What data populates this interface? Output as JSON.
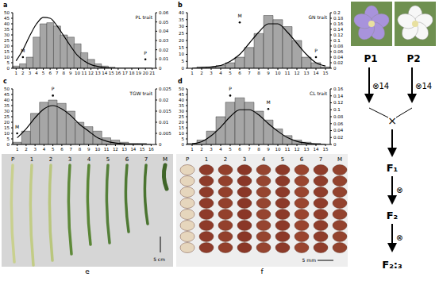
{
  "chart_data": [
    {
      "type": "bar",
      "label": "a",
      "title": "PL trait",
      "categories": [
        "1",
        "2",
        "3",
        "4",
        "5",
        "6",
        "7",
        "8",
        "9",
        "10",
        "11",
        "12",
        "13",
        "14",
        "15",
        "16",
        "17",
        "18",
        "19",
        "20",
        "21"
      ],
      "series": [
        {
          "type": "bar",
          "color": "#a6a6a6",
          "values": [
            2,
            4,
            10,
            28,
            40,
            41,
            38,
            30,
            28,
            22,
            14,
            8,
            4,
            2,
            1,
            0,
            0,
            0,
            0,
            0,
            0
          ]
        },
        {
          "type": "line",
          "color": "#000000",
          "axis": "y2",
          "values": [
            0.008,
            0.02,
            0.035,
            0.048,
            0.055,
            0.054,
            0.046,
            0.035,
            0.024,
            0.014,
            0.008,
            0.004,
            0.002,
            0.001,
            0,
            0,
            0,
            0,
            0,
            0,
            0
          ]
        }
      ],
      "ylim": [
        0,
        50
      ],
      "yticks": [
        0,
        5,
        10,
        15,
        20,
        25,
        30,
        35,
        40,
        45,
        50
      ],
      "y2lim": [
        0,
        0.06
      ],
      "y2ticks": [
        0,
        0.01,
        0.02,
        0.03,
        0.04,
        0.05,
        0.06
      ],
      "annotations": [
        {
          "text": "M",
          "x": "2",
          "y": 10
        },
        {
          "text": "P",
          "x": "20",
          "y": 8
        }
      ]
    },
    {
      "type": "bar",
      "label": "b",
      "title": "GN trait",
      "categories": [
        "1",
        "2",
        "3",
        "4",
        "5",
        "6",
        "7",
        "8",
        "9",
        "10",
        "11",
        "12",
        "13",
        "14",
        "15"
      ],
      "series": [
        {
          "type": "bar",
          "color": "#a6a6a6",
          "values": [
            0,
            1,
            1,
            2,
            4,
            8,
            15,
            25,
            38,
            35,
            30,
            20,
            8,
            4,
            1
          ]
        },
        {
          "type": "line",
          "color": "#000000",
          "axis": "y2",
          "values": [
            0,
            0.002,
            0.005,
            0.01,
            0.025,
            0.05,
            0.09,
            0.13,
            0.16,
            0.16,
            0.13,
            0.09,
            0.05,
            0.02,
            0.008
          ]
        }
      ],
      "ylim": [
        0,
        40
      ],
      "yticks": [
        0,
        5,
        10,
        15,
        20,
        25,
        30,
        35,
        40
      ],
      "y2lim": [
        0,
        0.2
      ],
      "y2ticks": [
        0,
        0.02,
        0.04,
        0.06,
        0.08,
        0.1,
        0.12,
        0.14,
        0.16,
        0.18,
        0.2
      ],
      "annotations": [
        {
          "text": "M",
          "x": "6",
          "y": 33
        },
        {
          "text": "P",
          "x": "14",
          "y": 8
        }
      ]
    },
    {
      "type": "bar",
      "label": "c",
      "title": "TGW trait",
      "categories": [
        "1",
        "2",
        "3",
        "4",
        "5",
        "6",
        "7",
        "8",
        "9",
        "10",
        "11",
        "12",
        "13",
        "14",
        "15",
        "16"
      ],
      "series": [
        {
          "type": "bar",
          "color": "#a6a6a6",
          "values": [
            2,
            12,
            28,
            38,
            40,
            37,
            30,
            20,
            16,
            12,
            6,
            4,
            2,
            1,
            1,
            0
          ]
        },
        {
          "type": "line",
          "color": "#000000",
          "axis": "y2",
          "values": [
            0.003,
            0.007,
            0.012,
            0.016,
            0.0175,
            0.016,
            0.013,
            0.009,
            0.006,
            0.003,
            0.0015,
            0.0007,
            0.0003,
            0.0001,
            0,
            0
          ]
        }
      ],
      "ylim": [
        0,
        50
      ],
      "yticks": [
        0,
        5,
        10,
        15,
        20,
        25,
        30,
        35,
        40,
        45,
        50
      ],
      "y2lim": [
        0,
        0.025
      ],
      "y2ticks": [
        0,
        0.005,
        0.01,
        0.015,
        0.02,
        0.025
      ],
      "annotations": [
        {
          "text": "M",
          "x": "1",
          "y": 10
        },
        {
          "text": "P",
          "x": "5",
          "y": 44
        }
      ]
    },
    {
      "type": "bar",
      "label": "d",
      "title": "CL trait",
      "categories": [
        "1",
        "2",
        "3",
        "4",
        "5",
        "6",
        "7",
        "8",
        "9",
        "10",
        "11",
        "12",
        "13",
        "14",
        "15"
      ],
      "series": [
        {
          "type": "bar",
          "color": "#a6a6a6",
          "values": [
            1,
            4,
            12,
            25,
            38,
            42,
            38,
            30,
            22,
            14,
            8,
            4,
            2,
            1,
            0
          ]
        },
        {
          "type": "line",
          "color": "#000000",
          "axis": "y2",
          "values": [
            0.002,
            0.008,
            0.025,
            0.05,
            0.08,
            0.1,
            0.1,
            0.085,
            0.06,
            0.038,
            0.02,
            0.009,
            0.004,
            0.001,
            0
          ]
        }
      ],
      "ylim": [
        0,
        50
      ],
      "yticks": [
        0,
        5,
        10,
        15,
        20,
        25,
        30,
        35,
        40,
        45,
        50
      ],
      "y2lim": [
        0,
        0.16
      ],
      "y2ticks": [
        0,
        0.02,
        0.04,
        0.06,
        0.08,
        0.1,
        0.12,
        0.14,
        0.16
      ],
      "annotations": [
        {
          "text": "M",
          "x": "9",
          "y": 32
        },
        {
          "text": "P",
          "x": "5",
          "y": 44
        }
      ]
    }
  ],
  "photos": {
    "e": {
      "label": "e",
      "lanes": [
        "P",
        "1",
        "2",
        "3",
        "4",
        "5",
        "6",
        "7",
        "M"
      ],
      "scale_bar": "5 cm"
    },
    "f": {
      "label": "f",
      "lanes": [
        "P",
        "1",
        "2",
        "3",
        "4",
        "5",
        "6",
        "7",
        "M"
      ],
      "scale_bar": "5 mm"
    }
  },
  "breeding_diagram": {
    "parents": [
      {
        "label": "P1",
        "color": "#a893dc"
      },
      {
        "label": "P2",
        "color": "#f7f7f7"
      }
    ],
    "parent_selfing": "⊗14",
    "cross": "×",
    "selfing": "⊗",
    "generations": [
      "F₁",
      "F₂",
      "F₂:₃"
    ]
  }
}
